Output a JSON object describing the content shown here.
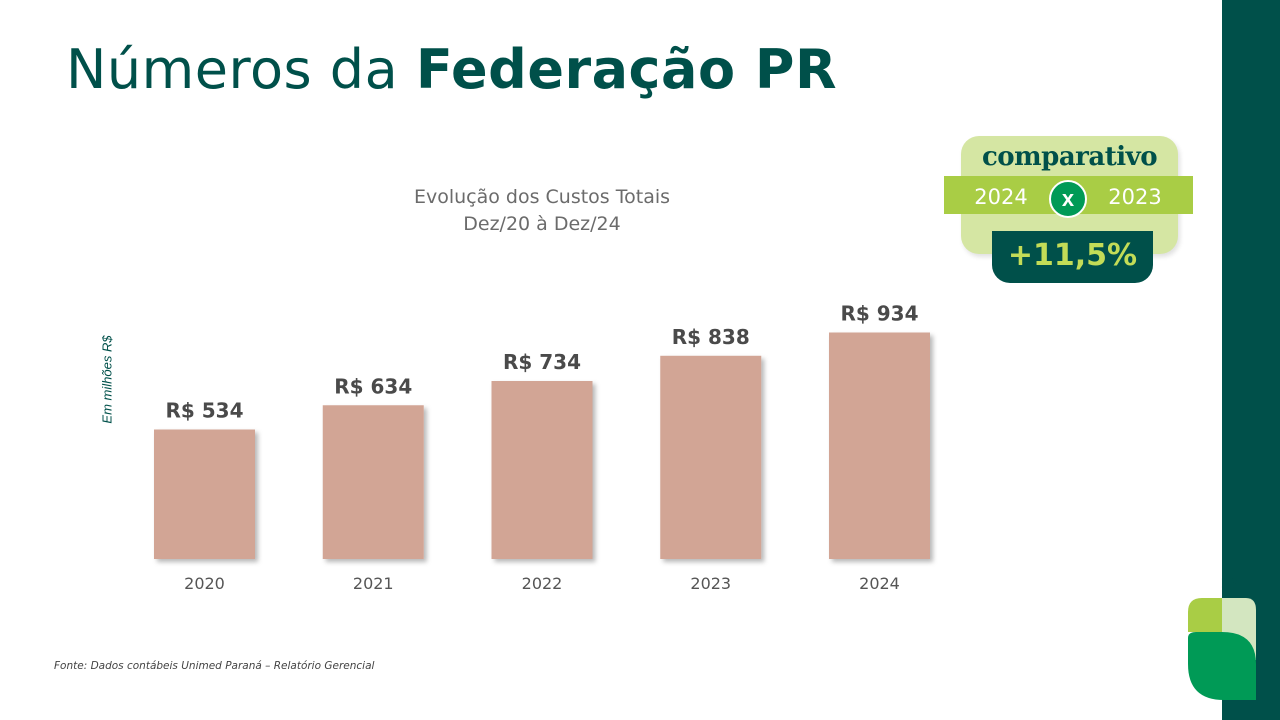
{
  "header": {
    "title_regular": "Números da ",
    "title_bold": "Federação PR"
  },
  "chart_data": {
    "type": "bar",
    "title": "Evolução dos Custos Totais",
    "subtitle": "Dez/20 à Dez/24",
    "ylabel": "Em milhões R$",
    "xlabel": "",
    "categories": [
      "2020",
      "2021",
      "2022",
      "2023",
      "2024"
    ],
    "values": [
      534,
      634,
      734,
      838,
      934
    ],
    "value_labels": [
      "R$ 534",
      "R$ 634",
      "R$ 734",
      "R$ 838",
      "R$ 934"
    ],
    "bar_color": "#d2a595",
    "ylim": [
      0,
      1000
    ],
    "grid": false,
    "legend": "none"
  },
  "comparison_badge": {
    "heading": "comparativo",
    "year_current": "2024",
    "vs_symbol": "x",
    "year_previous": "2023",
    "change": "+11,5%"
  },
  "footer": {
    "source": "Fonte: Dados contábeis Unimed Paraná – Relatório Gerencial"
  },
  "colors": {
    "brand_dark_green": "#00504a",
    "brand_light_green": "#a9cd45",
    "brand_green": "#009a56",
    "bar": "#d2a595"
  },
  "icons": {
    "logo": "unimed-leaf-logo-icon",
    "badge_vs": "x-circle-icon"
  }
}
